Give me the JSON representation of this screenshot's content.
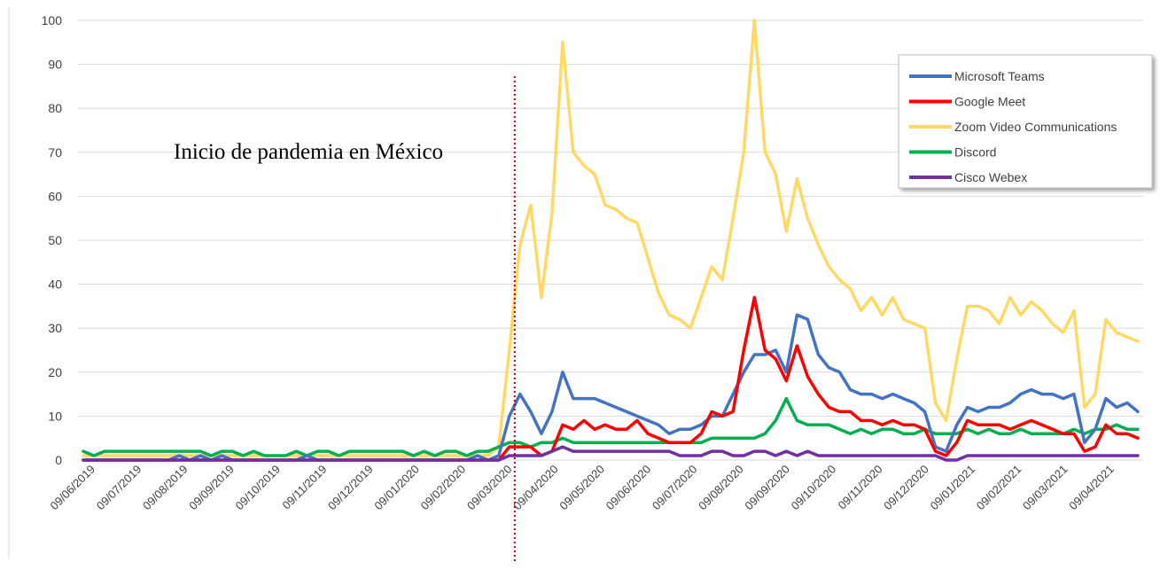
{
  "chart_data": {
    "type": "line",
    "annotation": "Inicio de pandemia en México",
    "ylim": [
      0,
      100
    ],
    "yticks": [
      0,
      10,
      20,
      30,
      40,
      50,
      60,
      70,
      80,
      90,
      100
    ],
    "xtick_labels": [
      "09/06/2019",
      "09/07/2019",
      "09/08/2019",
      "09/09/2019",
      "09/10/2019",
      "09/11/2019",
      "09/12/2019",
      "09/01/2020",
      "09/02/2020",
      "09/03/2020",
      "09/04/2020",
      "09/05/2020",
      "09/06/2020",
      "09/07/2020",
      "09/08/2020",
      "09/09/2020",
      "09/10/2020",
      "09/11/2020",
      "09/12/2020",
      "09/01/2021",
      "09/02/2021",
      "09/03/2021",
      "09/04/2021"
    ],
    "pandemic_marker_week": 40.5,
    "legend_position": "top-right",
    "series": [
      {
        "name": "Microsoft Teams",
        "color": "#4472C4",
        "values": [
          0,
          0,
          0,
          0,
          0,
          0,
          0,
          0,
          0,
          1,
          0,
          1,
          0,
          1,
          0,
          0,
          0,
          0,
          0,
          0,
          0,
          1,
          0,
          0,
          0,
          0,
          0,
          0,
          0,
          0,
          0,
          0,
          0,
          0,
          0,
          0,
          0,
          1,
          0,
          1,
          10,
          15,
          11,
          6,
          11,
          20,
          14,
          14,
          14,
          13,
          12,
          11,
          10,
          9,
          8,
          6,
          7,
          7,
          8,
          10,
          10,
          15,
          20,
          24,
          24,
          25,
          20,
          33,
          32,
          24,
          21,
          20,
          16,
          15,
          15,
          14,
          15,
          14,
          13,
          11,
          3,
          2,
          8,
          12,
          11,
          12,
          12,
          13,
          15,
          16,
          15,
          15,
          14,
          15,
          4,
          7,
          14,
          12,
          13,
          11
        ]
      },
      {
        "name": "Google Meet",
        "color": "#FF0000",
        "values": [
          0,
          0,
          0,
          0,
          0,
          0,
          0,
          0,
          0,
          0,
          0,
          0,
          0,
          0,
          0,
          0,
          0,
          0,
          0,
          0,
          0,
          0,
          0,
          0,
          0,
          0,
          0,
          0,
          0,
          0,
          0,
          0,
          0,
          0,
          0,
          0,
          0,
          0,
          0,
          0,
          3,
          3,
          3,
          1,
          2,
          8,
          7,
          9,
          7,
          8,
          7,
          7,
          9,
          6,
          5,
          4,
          4,
          4,
          6,
          11,
          10,
          11,
          25,
          37,
          25,
          23,
          18,
          26,
          19,
          15,
          12,
          11,
          11,
          9,
          9,
          8,
          9,
          8,
          8,
          7,
          2,
          1,
          4,
          9,
          8,
          8,
          8,
          7,
          8,
          9,
          8,
          7,
          6,
          6,
          2,
          3,
          8,
          6,
          6,
          5
        ]
      },
      {
        "name": "Zoom Video Communications",
        "color": "#FFD966",
        "values": [
          1,
          1,
          1,
          1,
          1,
          1,
          1,
          1,
          1,
          1,
          1,
          1,
          1,
          1,
          1,
          1,
          1,
          1,
          1,
          1,
          1,
          1,
          1,
          1,
          1,
          1,
          1,
          1,
          1,
          1,
          1,
          1,
          1,
          1,
          1,
          1,
          1,
          1,
          1,
          3,
          25,
          49,
          58,
          37,
          56,
          95,
          70,
          67,
          65,
          58,
          57,
          55,
          54,
          46,
          38,
          33,
          32,
          30,
          37,
          44,
          41,
          55,
          70,
          100,
          70,
          65,
          52,
          64,
          55,
          49,
          44,
          41,
          39,
          34,
          37,
          33,
          37,
          32,
          31,
          30,
          13,
          9,
          23,
          35,
          35,
          34,
          31,
          37,
          33,
          36,
          34,
          31,
          29,
          34,
          12,
          15,
          32,
          29,
          28,
          27
        ]
      },
      {
        "name": "Discord",
        "color": "#00B050",
        "values": [
          2,
          1,
          2,
          2,
          2,
          2,
          2,
          2,
          2,
          2,
          2,
          2,
          1,
          2,
          2,
          1,
          2,
          1,
          1,
          1,
          2,
          1,
          2,
          2,
          1,
          2,
          2,
          2,
          2,
          2,
          2,
          1,
          2,
          1,
          2,
          2,
          1,
          2,
          2,
          3,
          4,
          4,
          3,
          4,
          4,
          5,
          4,
          4,
          4,
          4,
          4,
          4,
          4,
          4,
          4,
          4,
          4,
          4,
          4,
          5,
          5,
          5,
          5,
          5,
          6,
          9,
          14,
          9,
          8,
          8,
          8,
          7,
          6,
          7,
          6,
          7,
          7,
          6,
          6,
          7,
          6,
          6,
          6,
          7,
          6,
          7,
          6,
          6,
          7,
          6,
          6,
          6,
          6,
          7,
          6,
          7,
          7,
          8,
          7,
          7
        ]
      },
      {
        "name": "Cisco Webex",
        "color": "#7030A0",
        "values": [
          0,
          0,
          0,
          0,
          0,
          0,
          0,
          0,
          0,
          0,
          0,
          0,
          0,
          0,
          0,
          0,
          0,
          0,
          0,
          0,
          0,
          0,
          0,
          0,
          0,
          0,
          0,
          0,
          0,
          0,
          0,
          0,
          0,
          0,
          0,
          0,
          0,
          0,
          0,
          0,
          1,
          1,
          1,
          1,
          2,
          3,
          2,
          2,
          2,
          2,
          2,
          2,
          2,
          2,
          2,
          2,
          1,
          1,
          1,
          2,
          2,
          1,
          1,
          2,
          2,
          1,
          2,
          1,
          2,
          1,
          1,
          1,
          1,
          1,
          1,
          1,
          1,
          1,
          1,
          1,
          1,
          0,
          0,
          1,
          1,
          1,
          1,
          1,
          1,
          1,
          1,
          1,
          1,
          1,
          1,
          1,
          1,
          1,
          1,
          1
        ]
      }
    ]
  }
}
